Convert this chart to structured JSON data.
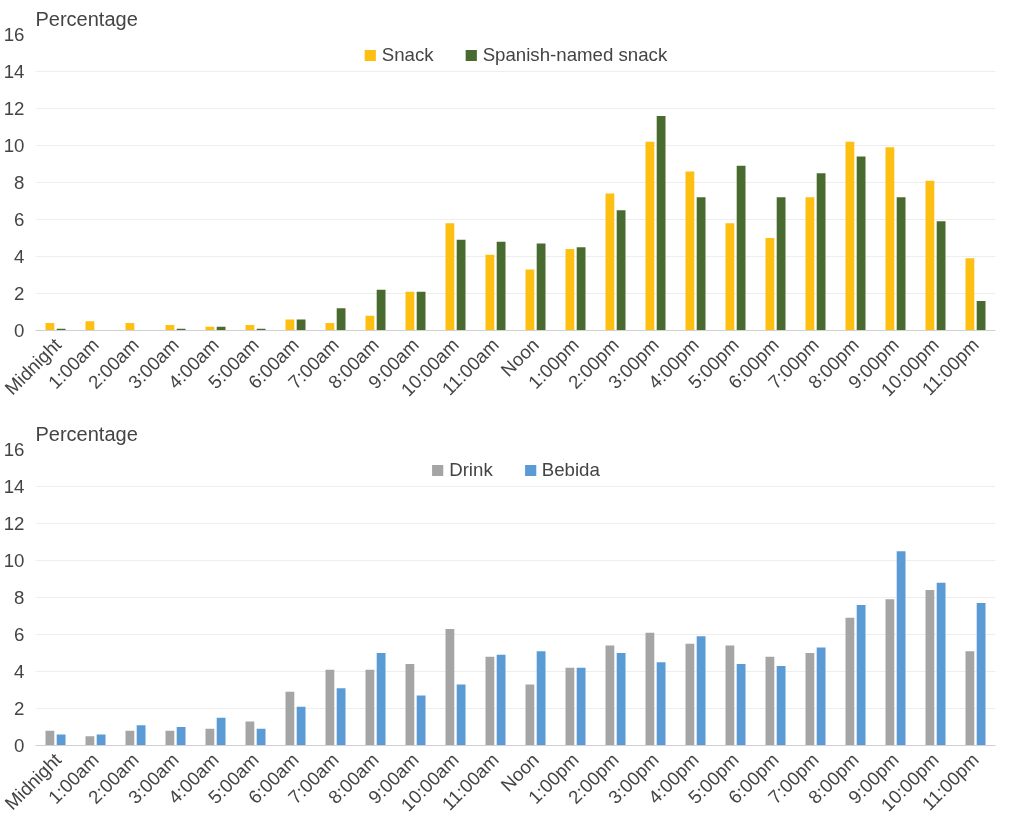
{
  "chart_data": [
    {
      "type": "bar",
      "ylabel": "Percentage",
      "categories": [
        "Midnight",
        "1:00am",
        "2:00am",
        "3:00am",
        "4:00am",
        "5:00am",
        "6:00am",
        "7:00am",
        "8:00am",
        "9:00am",
        "10:00am",
        "11:00am",
        "Noon",
        "1:00pm",
        "2:00pm",
        "3:00pm",
        "4:00pm",
        "5:00pm",
        "6:00pm",
        "7:00pm",
        "8:00pm",
        "9:00pm",
        "10:00pm",
        "11:00pm"
      ],
      "series": [
        {
          "name": "Snack",
          "color": "#fdbf11",
          "values": [
            0.4,
            0.5,
            0.4,
            0.3,
            0.2,
            0.3,
            0.6,
            0.4,
            0.8,
            2.1,
            5.8,
            4.1,
            3.3,
            4.4,
            7.4,
            10.2,
            8.6,
            5.8,
            5.0,
            7.2,
            10.2,
            9.9,
            8.1,
            3.9
          ]
        },
        {
          "name": "Spanish-named snack",
          "color": "#4a6b30",
          "values": [
            0.1,
            0,
            0,
            0.1,
            0.2,
            0.1,
            0.6,
            1.2,
            2.2,
            2.1,
            4.9,
            4.8,
            4.7,
            4.5,
            6.5,
            11.6,
            7.2,
            8.9,
            7.2,
            8.5,
            9.4,
            7.2,
            5.9,
            1.6
          ]
        }
      ],
      "ylim": [
        0,
        16
      ],
      "yticks": [
        0,
        2,
        4,
        6,
        8,
        10,
        12,
        14,
        16
      ],
      "grid": "y",
      "legend": "top"
    },
    {
      "type": "bar",
      "ylabel": "Percentage",
      "categories": [
        "Midnight",
        "1:00am",
        "2:00am",
        "3:00am",
        "4:00am",
        "5:00am",
        "6:00am",
        "7:00am",
        "8:00am",
        "9:00am",
        "10:00am",
        "11:00am",
        "Noon",
        "1:00pm",
        "2:00pm",
        "3:00pm",
        "4:00pm",
        "5:00pm",
        "6:00pm",
        "7:00pm",
        "8:00pm",
        "9:00pm",
        "10:00pm",
        "11:00pm"
      ],
      "series": [
        {
          "name": "Drink",
          "color": "#a5a5a5",
          "values": [
            0.8,
            0.5,
            0.8,
            0.8,
            0.9,
            1.3,
            2.9,
            4.1,
            4.1,
            4.4,
            6.3,
            4.8,
            3.3,
            4.2,
            5.4,
            6.1,
            5.5,
            5.4,
            4.8,
            5.0,
            6.9,
            7.9,
            8.4,
            5.1
          ]
        },
        {
          "name": "Bebida",
          "color": "#5b9bd5",
          "values": [
            0.6,
            0.6,
            1.1,
            1.0,
            1.5,
            0.9,
            2.1,
            3.1,
            5.0,
            2.7,
            3.3,
            4.9,
            5.1,
            4.2,
            5.0,
            4.5,
            5.9,
            4.4,
            4.3,
            5.3,
            7.6,
            10.5,
            8.8,
            7.7
          ]
        }
      ],
      "ylim": [
        0,
        16
      ],
      "yticks": [
        0,
        2,
        4,
        6,
        8,
        10,
        12,
        14,
        16
      ],
      "grid": "y",
      "legend": "top"
    }
  ]
}
